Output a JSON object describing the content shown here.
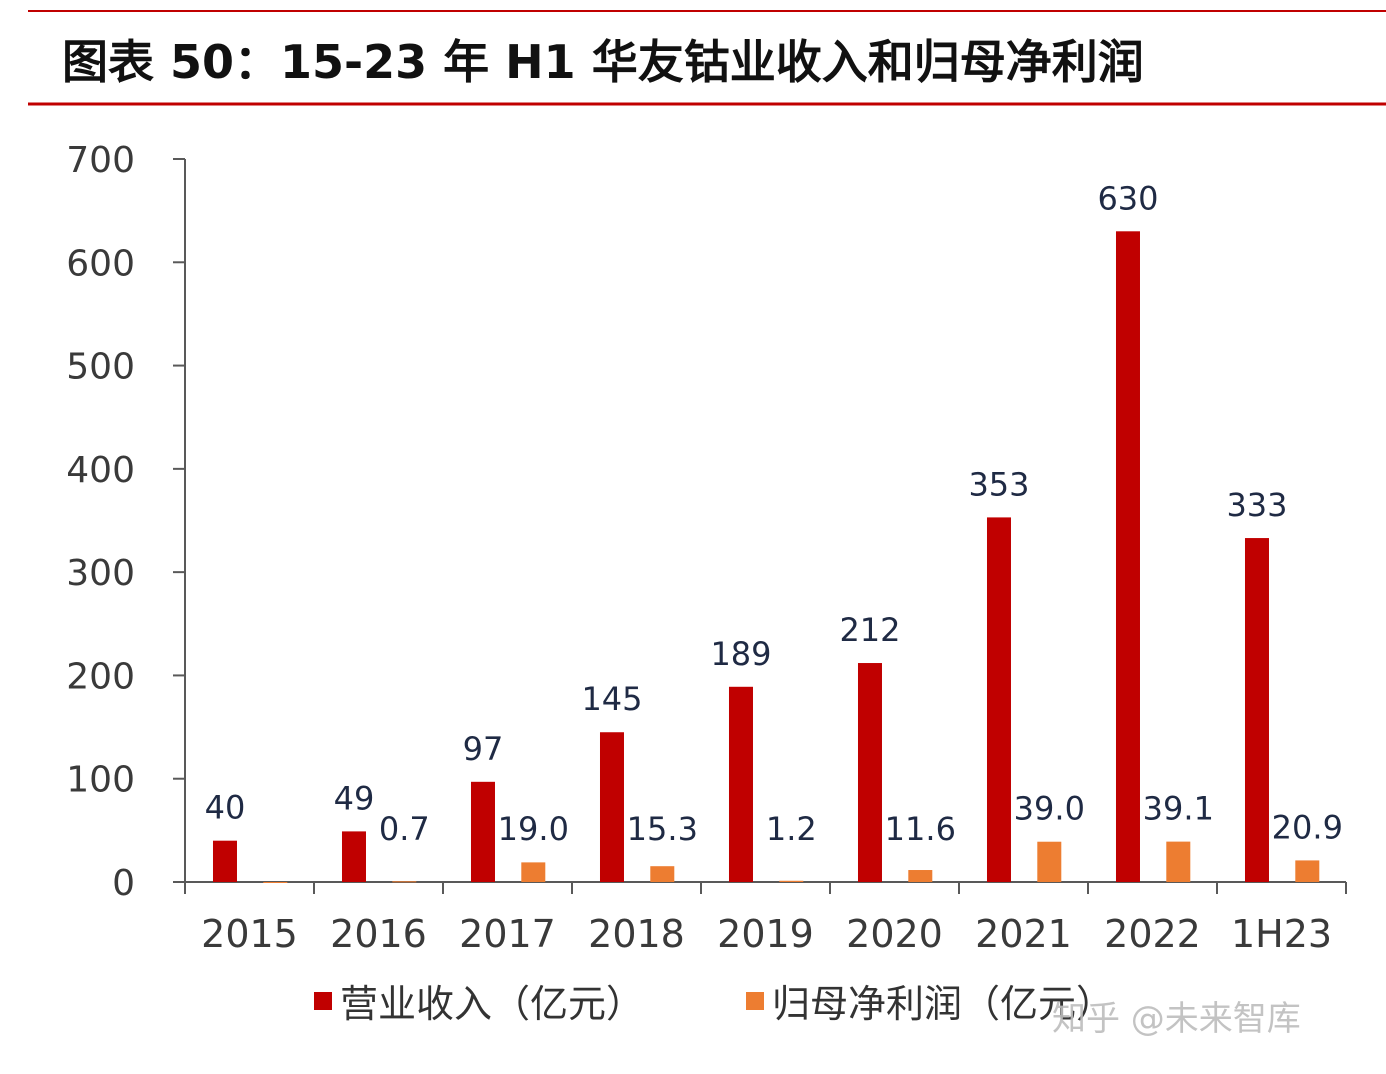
{
  "title": "图表 50：15-23 年 H1 华友钴业收入和归母净利润",
  "colors": {
    "rule": "#c00000",
    "revenue": "#c00000",
    "profit": "#ed7d31",
    "axis": "#595959"
  },
  "watermark": "知乎 @未来智库",
  "chart_data": {
    "type": "bar",
    "title": "15-23 年 H1 华友钴业收入和归母净利润",
    "categories": [
      "2015",
      "2016",
      "2017",
      "2018",
      "2019",
      "2020",
      "2021",
      "2022",
      "1H23"
    ],
    "series": [
      {
        "name": "营业收入（亿元）",
        "values": [
          40,
          49,
          97,
          145,
          189,
          212,
          353,
          630,
          333
        ],
        "labels": [
          "40",
          "49",
          "97",
          "145",
          "189",
          "212",
          "353",
          "630",
          "333"
        ]
      },
      {
        "name": "归母净利润（亿元）",
        "values": [
          -0.3,
          0.7,
          19.0,
          15.3,
          1.2,
          11.6,
          39.0,
          39.1,
          20.9
        ],
        "labels": [
          "",
          "0.7",
          "19.0",
          "15.3",
          "1.2",
          "11.6",
          "39.0",
          "39.1",
          "20.9"
        ]
      }
    ],
    "yticks": [
      "0",
      "100",
      "200",
      "300",
      "400",
      "500",
      "600",
      "700"
    ],
    "ylim": [
      0,
      700
    ],
    "xlabel": "",
    "ylabel": "",
    "grid": false,
    "legend_position": "bottom"
  }
}
